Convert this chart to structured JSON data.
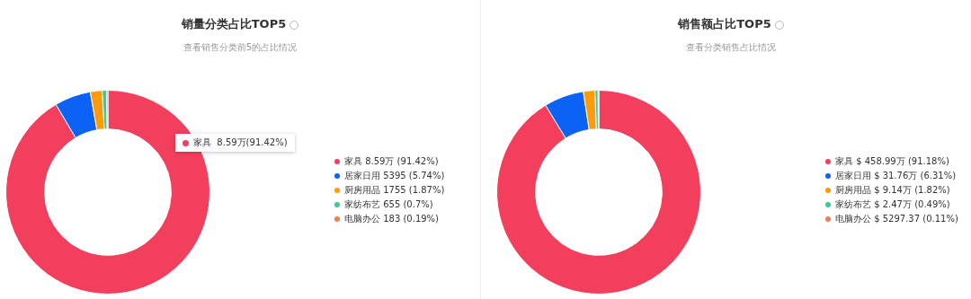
{
  "chart_data": [
    {
      "type": "donut",
      "title": "销量分类占比TOP5",
      "subtitle": "查看销售分类前5的占比情况",
      "categories": [
        "家具",
        "居家日用",
        "厨房用品",
        "家纺布艺",
        "电脑办公"
      ],
      "values": [
        91.42,
        5.74,
        1.87,
        0.7,
        0.19
      ],
      "value_labels": [
        "8.59万  (91.42%)",
        "5395  (5.74%)",
        "1755  (1.87%)",
        "655  (0.7%)",
        "183  (0.19%)"
      ],
      "colors": [
        "#f23f5d",
        "#0b62f5",
        "#ff9a0c",
        "#3ec98e",
        "#f27a55"
      ],
      "legend": "right",
      "annotations": [
        "家具  8.59万(91.42%)"
      ]
    },
    {
      "type": "donut",
      "title": "销售额占比TOP5",
      "subtitle": "查看分类销售占比情况",
      "categories": [
        "家具",
        "居家日用",
        "厨房用品",
        "家纺布艺",
        "电脑办公"
      ],
      "values": [
        91.18,
        6.31,
        1.82,
        0.49,
        0.11
      ],
      "value_labels": [
        "$ 458.99万  (91.18%)",
        "$ 31.76万  (6.31%)",
        "$ 9.14万  (1.82%)",
        "$ 2.47万  (0.49%)",
        "$ 5297.37  (0.11%)"
      ],
      "colors": [
        "#f23f5d",
        "#0b62f5",
        "#ff9a0c",
        "#3ec98e",
        "#f27a55"
      ],
      "legend": "right"
    }
  ]
}
